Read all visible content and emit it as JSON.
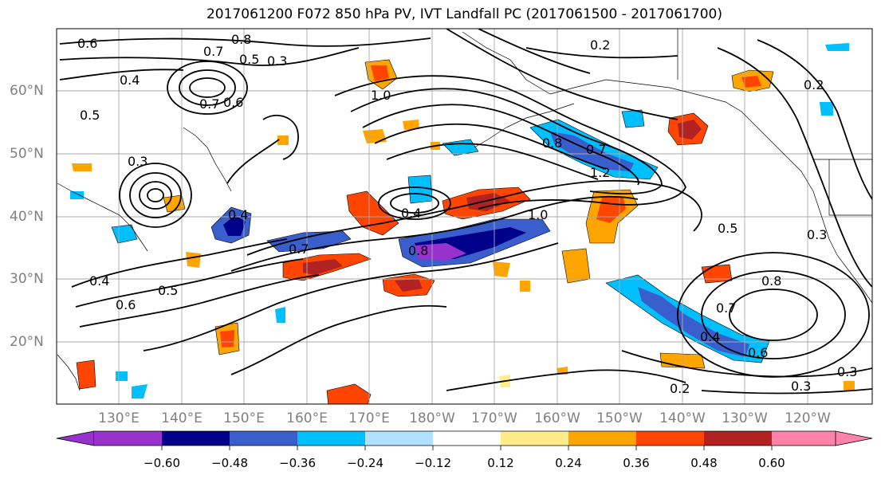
{
  "title": "2017061200 F072 850 hPa PV, IVT Landfall PC (2017061500 - 2017061700)",
  "lat_labels": [
    "60°N",
    "50°N",
    "40°N",
    "30°N",
    "20°N"
  ],
  "lon_labels": [
    "130°E",
    "140°E",
    "150°E",
    "160°E",
    "170°E",
    "180°W",
    "170°W",
    "160°W",
    "150°W",
    "140°W",
    "130°W",
    "120°W"
  ],
  "colorbar": {
    "ticks": [
      "−0.60",
      "−0.48",
      "−0.36",
      "−0.24",
      "−0.12",
      "0.12",
      "0.24",
      "0.36",
      "0.48",
      "0.60"
    ],
    "colors": [
      "#9932cc",
      "#00008b",
      "#3a5fcd",
      "#00bfff",
      "#b0e2ff",
      "#ffffff",
      "#ffec8b",
      "#ffa500",
      "#ff4500",
      "#b22222",
      "#ff82ab"
    ]
  },
  "contour_labels": [
    "0.6",
    "0.7",
    "0.8",
    "0.5",
    "0.3",
    "0.4",
    "0.2",
    "1.0",
    "0.3",
    "0.7",
    "0.6",
    "0.5",
    "0.8",
    "1.2",
    "0.7",
    "0.4",
    "0.7",
    "0.8",
    "0.4",
    "1.0",
    "0.5",
    "0.3",
    "0.4",
    "0.6",
    "0.5",
    "0.7",
    "0.8",
    "0.4",
    "0.6",
    "0.3",
    "0.3",
    "0.2",
    "0.2"
  ]
}
